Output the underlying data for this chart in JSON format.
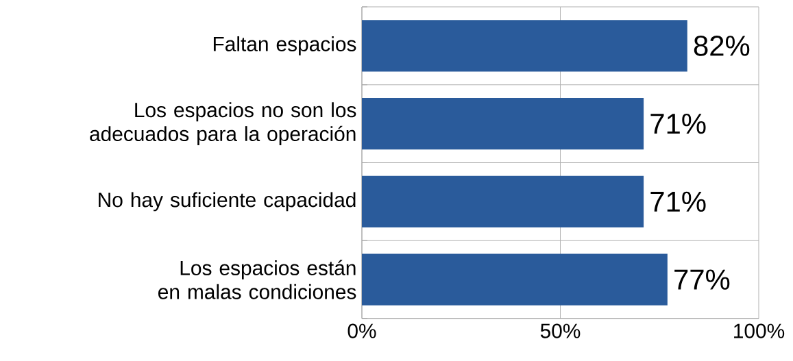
{
  "chart_data": {
    "type": "bar",
    "orientation": "horizontal",
    "categories": [
      "Faltan espacios",
      "Los espacios no son los adecuados para la operación",
      "No hay suficiente capacidad",
      "Los espacios están en malas condiciones"
    ],
    "values": [
      82,
      71,
      71,
      77
    ],
    "color": "#2a5b9b",
    "value_labels": [
      "82%",
      "71%",
      "71%",
      "77%"
    ],
    "xlim": [
      0,
      100
    ],
    "xticks": [
      {
        "value": 0,
        "label": "0%"
      },
      {
        "value": 50,
        "label": "50%"
      },
      {
        "value": 100,
        "label": "100%"
      }
    ],
    "grid": true
  }
}
